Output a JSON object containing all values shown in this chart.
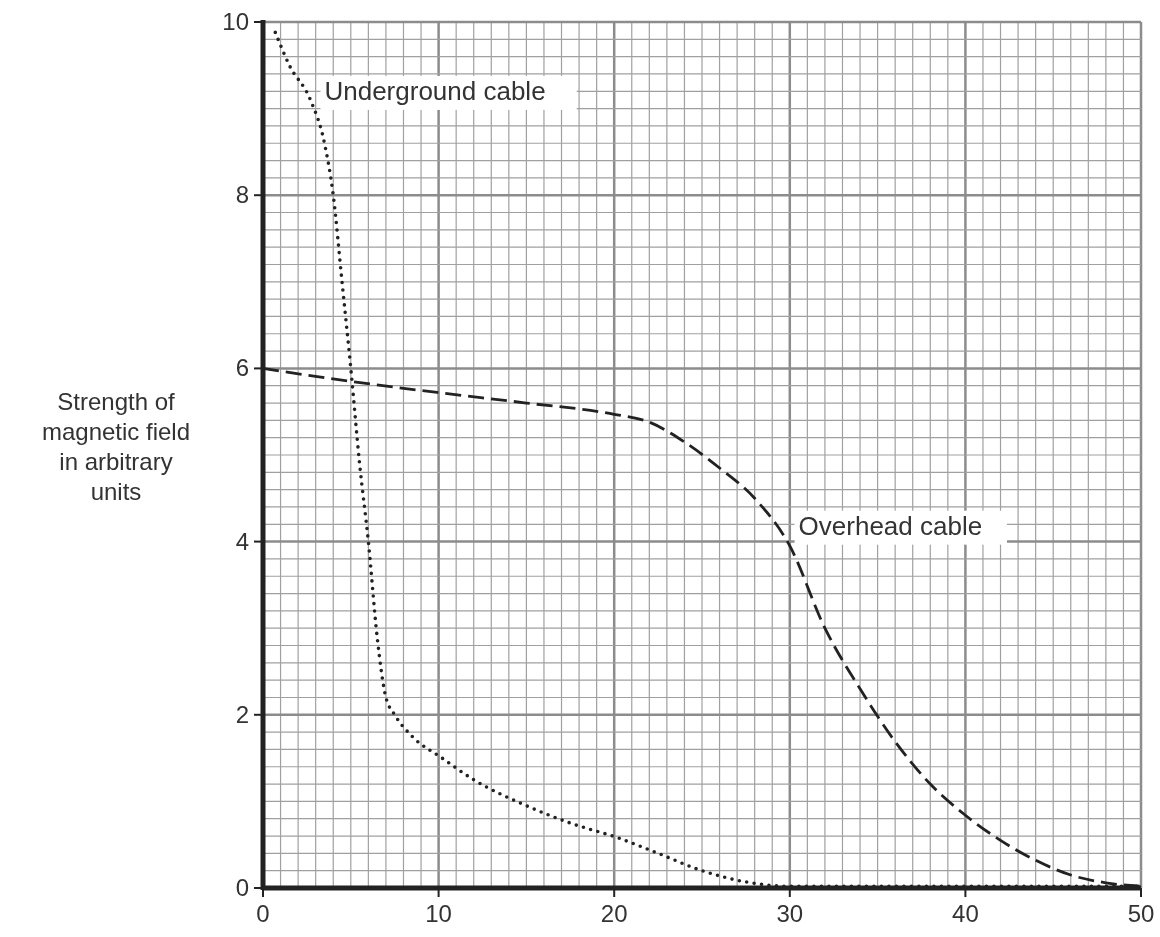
{
  "chart_data": {
    "type": "line",
    "ylabel": "Strength of magnetic field in arbitrary units",
    "xlim": [
      0,
      50
    ],
    "xticks": [
      0,
      10,
      20,
      30,
      40,
      50
    ],
    "ylim": [
      0,
      10
    ],
    "yticks": [
      0,
      2,
      4,
      6,
      8,
      10
    ],
    "grid": true,
    "marker": "none",
    "series": [
      {
        "name": "Underground cable",
        "color": "#222222",
        "line_style": "dotted",
        "x": [
          0.7,
          1.5,
          2.7,
          3.5,
          4.0,
          4.5,
          5.0,
          5.5,
          6.0,
          6.5,
          7.0,
          7.5,
          8.5,
          10.2,
          12,
          15,
          17.5,
          20.2,
          22.5,
          25,
          27.5,
          30,
          35,
          40,
          45,
          50
        ],
        "values": [
          9.88,
          9.5,
          9.1,
          8.6,
          8.0,
          7.0,
          6.0,
          4.9,
          4.0,
          2.9,
          2.2,
          2.0,
          1.75,
          1.5,
          1.25,
          0.95,
          0.75,
          0.58,
          0.4,
          0.2,
          0.07,
          0.02,
          0.02,
          0.02,
          0.02,
          0.02
        ]
      },
      {
        "name": "Overhead cable",
        "color": "#222222",
        "line_style": "dashed",
        "x": [
          0,
          5,
          10,
          15,
          20,
          22,
          24,
          26,
          28,
          30,
          32,
          34,
          36,
          38,
          40,
          42,
          44,
          46,
          48,
          50
        ],
        "values": [
          6.0,
          5.85,
          5.72,
          5.6,
          5.47,
          5.38,
          5.15,
          4.85,
          4.5,
          3.95,
          3.0,
          2.3,
          1.69,
          1.2,
          0.84,
          0.55,
          0.32,
          0.15,
          0.06,
          0.02
        ]
      }
    ]
  }
}
